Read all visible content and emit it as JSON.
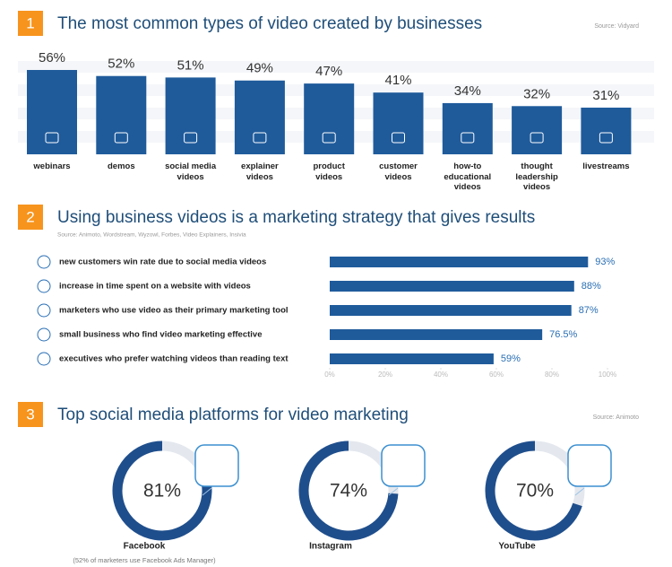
{
  "chart_data": [
    {
      "type": "bar",
      "number": "1",
      "title": "The most common types of video created by businesses",
      "source": "Source: Vidyard",
      "categories": [
        "webinars",
        "demos",
        "social media\nvideos",
        "explainer\nvideos",
        "product\nvideos",
        "customer\nvideos",
        "how-to\neducational\nvideos",
        "thought\nleadership\nvideos",
        "livestreams"
      ],
      "values": [
        56,
        52,
        51,
        49,
        47,
        41,
        34,
        32,
        31
      ],
      "value_labels": [
        "56%",
        "52%",
        "51%",
        "49%",
        "47%",
        "41%",
        "34%",
        "32%",
        "31%"
      ],
      "color": "#1f5b9b"
    },
    {
      "type": "barh",
      "number": "2",
      "title": "Using business videos is a marketing strategy that gives results",
      "source": "Source: Animoto, Wordstream, Wyzowl, Forbes, Video Explainers, Insivia",
      "categories": [
        "new customers win rate due to social media videos",
        "increase in time spent on a website with videos",
        "marketers who use video as their primary marketing tool",
        "small business who find video marketing effective",
        "executives who prefer watching videos than reading text"
      ],
      "values": [
        93,
        88,
        87,
        76.5,
        59
      ],
      "value_labels": [
        "93%",
        "88%",
        "87%",
        "76.5%",
        "59%"
      ],
      "xlim": [
        0,
        100
      ],
      "xticks": [
        {
          "value": 0,
          "label": "0%"
        },
        {
          "value": 20,
          "label": "20%"
        },
        {
          "value": 40,
          "label": "40%"
        },
        {
          "value": 60,
          "label": "60%"
        },
        {
          "value": 80,
          "label": "80%"
        },
        {
          "value": 100,
          "label": "100%"
        }
      ],
      "color": "#1f5b9b"
    },
    {
      "type": "donut",
      "number": "3",
      "title": "Top social media platforms for video marketing",
      "source": "Source: Animoto",
      "categories": [
        "Facebook",
        "Instagram",
        "YouTube"
      ],
      "values": [
        81,
        74,
        70
      ],
      "value_labels": [
        "81%",
        "74%",
        "70%"
      ],
      "note": "(52% of marketers use Facebook Ads Manager)",
      "ylim": [
        0,
        100
      ],
      "color": "#1f4e8c"
    }
  ]
}
